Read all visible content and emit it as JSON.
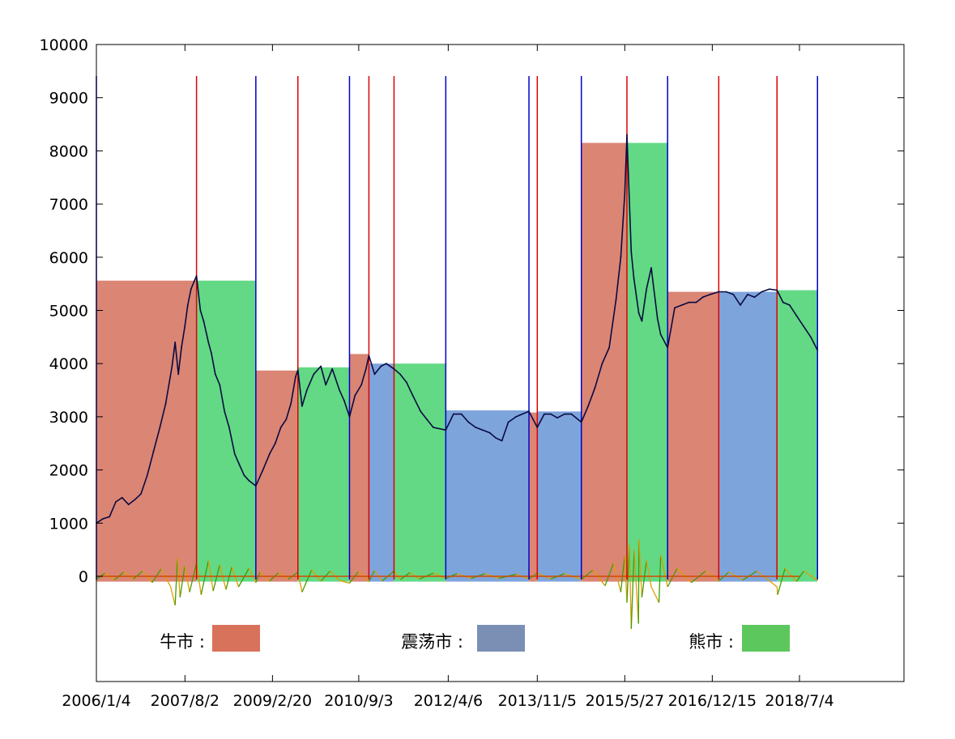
{
  "chart_data": {
    "type": "line",
    "title": "",
    "xlabel": "",
    "ylabel": "",
    "ylim": [
      -2000,
      10000
    ],
    "y_ticks": [
      0,
      1000,
      2000,
      3000,
      4000,
      5000,
      6000,
      7000,
      8000,
      9000,
      10000
    ],
    "x_tick_labels": [
      "2006/1/4",
      "2007/8/2",
      "2009/2/20",
      "2010/9/3",
      "2012/4/6",
      "2013/11/5",
      "2015/5/27",
      "2016/12/15",
      "2018/7/4"
    ],
    "grid": false,
    "legend": [
      {
        "label": "牛市 :",
        "color": "#d9725a",
        "regime": "bull"
      },
      {
        "label": "震荡市 :",
        "color": "#7b8fb5",
        "regime": "range"
      },
      {
        "label": "熊市 :",
        "color": "#5cc75c",
        "regime": "bear"
      }
    ],
    "regime_colors": {
      "bull": "#db8575",
      "range": "#7ea4dc",
      "bear": "#63d985"
    },
    "regime_segments": [
      {
        "regime": "bull",
        "start": "2006/1/4",
        "end": "2007/10/16",
        "level": 5560
      },
      {
        "regime": "bear",
        "start": "2007/10/16",
        "end": "2008/11/4",
        "level": 5560
      },
      {
        "regime": "bull",
        "start": "2008/11/4",
        "end": "2009/8/4",
        "level": 3870
      },
      {
        "regime": "bear",
        "start": "2009/8/4",
        "end": "2010/7/5",
        "level": 3930
      },
      {
        "regime": "bull",
        "start": "2010/7/5",
        "end": "2010/11/8",
        "level": 4180
      },
      {
        "regime": "range",
        "start": "2010/11/8",
        "end": "2011/4/20",
        "level": 4000
      },
      {
        "regime": "bear",
        "start": "2011/4/20",
        "end": "2012/3/21",
        "level": 4000
      },
      {
        "regime": "range",
        "start": "2012/3/21",
        "end": "2013/9/12",
        "level": 3120
      },
      {
        "regime": "bull",
        "start": "2013/9/12",
        "end": "2013/11/5",
        "level": 3080
      },
      {
        "regime": "range",
        "start": "2013/11/5",
        "end": "2014/8/18",
        "level": 3100
      },
      {
        "regime": "bull",
        "start": "2014/8/18",
        "end": "2015/6/10",
        "level": 8150
      },
      {
        "regime": "bear",
        "start": "2015/6/10",
        "end": "2016/2/29",
        "level": 8150
      },
      {
        "regime": "bull",
        "start": "2016/2/29",
        "end": "2017/1/26",
        "level": 5350
      },
      {
        "regime": "range",
        "start": "2017/1/26",
        "end": "2018/2/8",
        "level": 5350
      },
      {
        "regime": "bear",
        "start": "2018/2/8",
        "end": "2018/10/29",
        "level": 5380
      }
    ],
    "boundary_lines": [
      {
        "date": "2006/1/4",
        "color": "#0000cc"
      },
      {
        "date": "2007/10/16",
        "color": "#dd0000"
      },
      {
        "date": "2008/11/4",
        "color": "#0000cc"
      },
      {
        "date": "2009/8/4",
        "color": "#dd0000"
      },
      {
        "date": "2010/7/5",
        "color": "#0000cc"
      },
      {
        "date": "2010/11/8",
        "color": "#dd0000"
      },
      {
        "date": "2011/4/20",
        "color": "#dd0000"
      },
      {
        "date": "2012/3/21",
        "color": "#0000cc"
      },
      {
        "date": "2013/9/12",
        "color": "#0000cc"
      },
      {
        "date": "2013/11/5",
        "color": "#dd0000"
      },
      {
        "date": "2014/8/18",
        "color": "#0000cc"
      },
      {
        "date": "2015/6/10",
        "color": "#dd0000"
      },
      {
        "date": "2016/2/29",
        "color": "#0000cc"
      },
      {
        "date": "2017/1/26",
        "color": "#dd0000"
      },
      {
        "date": "2018/2/8",
        "color": "#dd0000"
      },
      {
        "date": "2018/10/29",
        "color": "#0000cc"
      }
    ],
    "series": [
      {
        "color": "#0a0a40",
        "x": [
          "2006/1/4",
          "2006/2/15",
          "2006/3/30",
          "2006/5/10",
          "2006/6/20",
          "2006/8/1",
          "2006/9/10",
          "2006/10/20",
          "2006/11/30",
          "2007/1/10",
          "2007/2/20",
          "2007/3/30",
          "2007/5/10",
          "2007/5/30",
          "2007/6/20",
          "2007/7/10",
          "2007/8/1",
          "2007/8/20",
          "2007/9/10",
          "2007/10/1",
          "2007/10/16",
          "2007/11/10",
          "2007/12/1",
          "2008/1/1",
          "2008/1/20",
          "2008/2/15",
          "2008/3/15",
          "2008/4/15",
          "2008/5/15",
          "2008/6/20",
          "2008/7/20",
          "2008/8/20",
          "2008/9/20",
          "2008/11/4",
          "2008/12/20",
          "2009/2/1",
          "2009/3/10",
          "2009/4/15",
          "2009/5/20",
          "2009/6/20",
          "2009/7/20",
          "2009/8/4",
          "2009/8/31",
          "2009/10/1",
          "2009/11/15",
          "2009/12/31",
          "2010/2/1",
          "2010/3/15",
          "2010/5/1",
          "2010/6/1",
          "2010/7/5",
          "2010/8/10",
          "2010/9/20",
          "2010/10/20",
          "2010/11/8",
          "2010/12/15",
          "2011/1/25",
          "2011/3/1",
          "2011/4/20",
          "2011/5/30",
          "2011/7/10",
          "2011/8/20",
          "2011/10/10",
          "2011/11/20",
          "2011/12/31",
          "2012/3/21",
          "2012/5/10",
          "2012/7/1",
          "2012/8/15",
          "2012/10/1",
          "2012/11/15",
          "2012/12/31",
          "2013/2/10",
          "2013/3/20",
          "2013/5/1",
          "2013/6/20",
          "2013/7/30",
          "2013/9/12",
          "2013/11/5",
          "2013/12/20",
          "2014/2/1",
          "2014/3/15",
          "2014/5/1",
          "2014/6/15",
          "2014/8/18",
          "2014/10/1",
          "2014/11/15",
          "2014/12/31",
          "2015/2/15",
          "2015/3/31",
          "2015/5/1",
          "2015/5/27",
          "2015/6/10",
          "2015/7/8",
          "2015/7/25",
          "2015/8/26",
          "2015/9/15",
          "2015/10/15",
          "2015/11/15",
          "2015/12/25",
          "2016/1/15",
          "2016/2/29",
          "2016/4/15",
          "2016/6/1",
          "2016/7/15",
          "2016/9/1",
          "2016/10/15",
          "2016/12/1",
          "2017/1/26",
          "2017/3/15",
          "2017/5/1",
          "2017/6/15",
          "2017/8/1",
          "2017/9/15",
          "2017/11/1",
          "2017/12/20",
          "2018/2/8",
          "2018/3/20",
          "2018/5/1",
          "2018/6/15",
          "2018/7/31",
          "2018/9/15",
          "2018/10/29"
        ],
        "y": [
          1000,
          1080,
          1120,
          1400,
          1480,
          1350,
          1440,
          1550,
          1900,
          2350,
          2800,
          3250,
          3950,
          4400,
          3800,
          4300,
          4700,
          5100,
          5400,
          5550,
          5650,
          5000,
          4800,
          4400,
          4200,
          3800,
          3600,
          3100,
          2800,
          2300,
          2100,
          1900,
          1800,
          1700,
          2000,
          2300,
          2500,
          2800,
          2950,
          3250,
          3750,
          3880,
          3200,
          3500,
          3800,
          3950,
          3600,
          3900,
          3500,
          3300,
          3000,
          3400,
          3600,
          3900,
          4150,
          3800,
          3950,
          4000,
          3900,
          3800,
          3650,
          3400,
          3100,
          2950,
          2800,
          2750,
          3050,
          3050,
          2900,
          2800,
          2750,
          2700,
          2600,
          2550,
          2900,
          3000,
          3050,
          3100,
          2800,
          3050,
          3050,
          2980,
          3050,
          3050,
          2900,
          3200,
          3550,
          4000,
          4300,
          5200,
          6000,
          7200,
          8300,
          6100,
          5600,
          4950,
          4800,
          5400,
          5800,
          4850,
          4550,
          4300,
          5050,
          5100,
          5150,
          5150,
          5250,
          5300,
          5350,
          5350,
          5300,
          5100,
          5300,
          5250,
          5350,
          5400,
          5380,
          5150,
          5100,
          4900,
          4700,
          4500,
          4250
        ]
      }
    ],
    "signal_colors": {
      "below": "#e39c00",
      "above": "#3f9d00"
    },
    "signal": {
      "x": [
        "2006/1/4",
        "2006/3/1",
        "2006/5/1",
        "2006/7/1",
        "2006/9/1",
        "2006/11/1",
        "2007/1/1",
        "2007/3/1",
        "2007/5/1",
        "2007/5/30",
        "2007/6/15",
        "2007/7/1",
        "2007/8/1",
        "2007/9/1",
        "2007/10/16",
        "2007/11/15",
        "2008/1/1",
        "2008/2/1",
        "2008/3/15",
        "2008/4/24",
        "2008/6/1",
        "2008/7/15",
        "2008/9/20",
        "2008/11/4",
        "2008/12/1",
        "2009/2/1",
        "2009/4/1",
        "2009/6/1",
        "2009/8/4",
        "2009/8/31",
        "2009/11/1",
        "2010/1/1",
        "2010/3/1",
        "2010/5/1",
        "2010/7/5",
        "2010/9/1",
        "2010/11/8",
        "2010/12/15",
        "2011/2/1",
        "2011/4/20",
        "2011/6/1",
        "2011/8/1",
        "2011/10/1",
        "2012/1/1",
        "2012/3/21",
        "2012/6/1",
        "2012/9/1",
        "2012/12/1",
        "2013/3/1",
        "2013/6/20",
        "2013/9/12",
        "2013/11/5",
        "2014/2/1",
        "2014/5/1",
        "2014/8/18",
        "2014/11/1",
        "2015/1/19",
        "2015/3/15",
        "2015/5/1",
        "2015/5/27",
        "2015/6/10",
        "2015/6/26",
        "2015/7/8",
        "2015/7/27",
        "2015/8/24",
        "2015/8/27",
        "2015/9/15",
        "2015/10/15",
        "2015/11/15",
        "2016/1/4",
        "2016/1/15",
        "2016/2/29",
        "2016/5/1",
        "2016/8/1",
        "2016/11/1",
        "2017/1/26",
        "2017/4/1",
        "2017/7/1",
        "2017/10/1",
        "2018/2/8",
        "2018/2/12",
        "2018/4/1",
        "2018/6/15",
        "2018/8/1",
        "2018/10/29"
      ],
      "y": [
        -60,
        60,
        -70,
        80,
        -50,
        100,
        -120,
        140,
        -200,
        -550,
        350,
        -400,
        200,
        -300,
        250,
        -350,
        300,
        -280,
        220,
        -250,
        180,
        -200,
        150,
        -120,
        80,
        -90,
        70,
        -60,
        80,
        -300,
        120,
        -90,
        100,
        -80,
        -130,
        90,
        -100,
        110,
        -90,
        100,
        -60,
        70,
        -50,
        60,
        -40,
        50,
        -40,
        50,
        -40,
        40,
        -50,
        60,
        -50,
        50,
        -60,
        120,
        -180,
        250,
        -300,
        400,
        -500,
        600,
        -1000,
        500,
        -900,
        700,
        -400,
        300,
        -200,
        -500,
        400,
        -200,
        150,
        -120,
        100,
        -90,
        80,
        -70,
        100,
        -200,
        -350,
        150,
        -100,
        100,
        -80
      ]
    }
  }
}
